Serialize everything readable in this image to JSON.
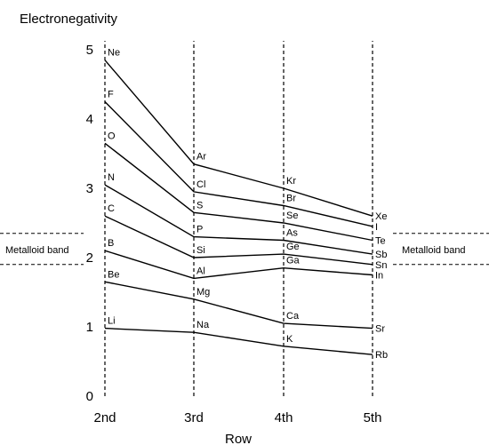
{
  "chart_data": {
    "type": "line",
    "title": "",
    "ylabel": "Electronegativity",
    "xlabel": "Row",
    "categories": [
      "2nd",
      "3rd",
      "4th",
      "5th"
    ],
    "yticks": [
      "0",
      "1",
      "2",
      "3",
      "4",
      "5"
    ],
    "ylim": [
      0,
      5
    ],
    "grid": "vertical dashed lines at each row",
    "series": [
      {
        "elements": [
          "Ne",
          "Ar",
          "Kr",
          "Xe"
        ],
        "values": [
          4.85,
          3.35,
          3.0,
          2.6
        ]
      },
      {
        "elements": [
          "F",
          "Cl",
          "Br",
          "I"
        ],
        "values": [
          4.25,
          2.95,
          2.75,
          2.45
        ]
      },
      {
        "elements": [
          "O",
          "S",
          "Se",
          "Te"
        ],
        "values": [
          3.65,
          2.65,
          2.5,
          2.25
        ]
      },
      {
        "elements": [
          "N",
          "P",
          "As",
          "Sb"
        ],
        "values": [
          3.05,
          2.3,
          2.25,
          2.05
        ]
      },
      {
        "elements": [
          "C",
          "Si",
          "Ge",
          "Sn"
        ],
        "values": [
          2.6,
          2.0,
          2.05,
          1.9
        ]
      },
      {
        "elements": [
          "B",
          "Al",
          "Ga",
          "In"
        ],
        "values": [
          2.1,
          1.7,
          1.85,
          1.75
        ]
      },
      {
        "elements": [
          "Be",
          "Mg",
          "Ca",
          "Sr"
        ],
        "values": [
          1.65,
          1.4,
          1.05,
          0.98
        ]
      },
      {
        "elements": [
          "Li",
          "Na",
          "K",
          "Rb"
        ],
        "values": [
          0.98,
          0.92,
          0.72,
          0.6
        ]
      }
    ],
    "annotations": {
      "metalloid_band_label": "Metalloid band",
      "metalloid_band_range": [
        1.9,
        2.35
      ]
    }
  }
}
